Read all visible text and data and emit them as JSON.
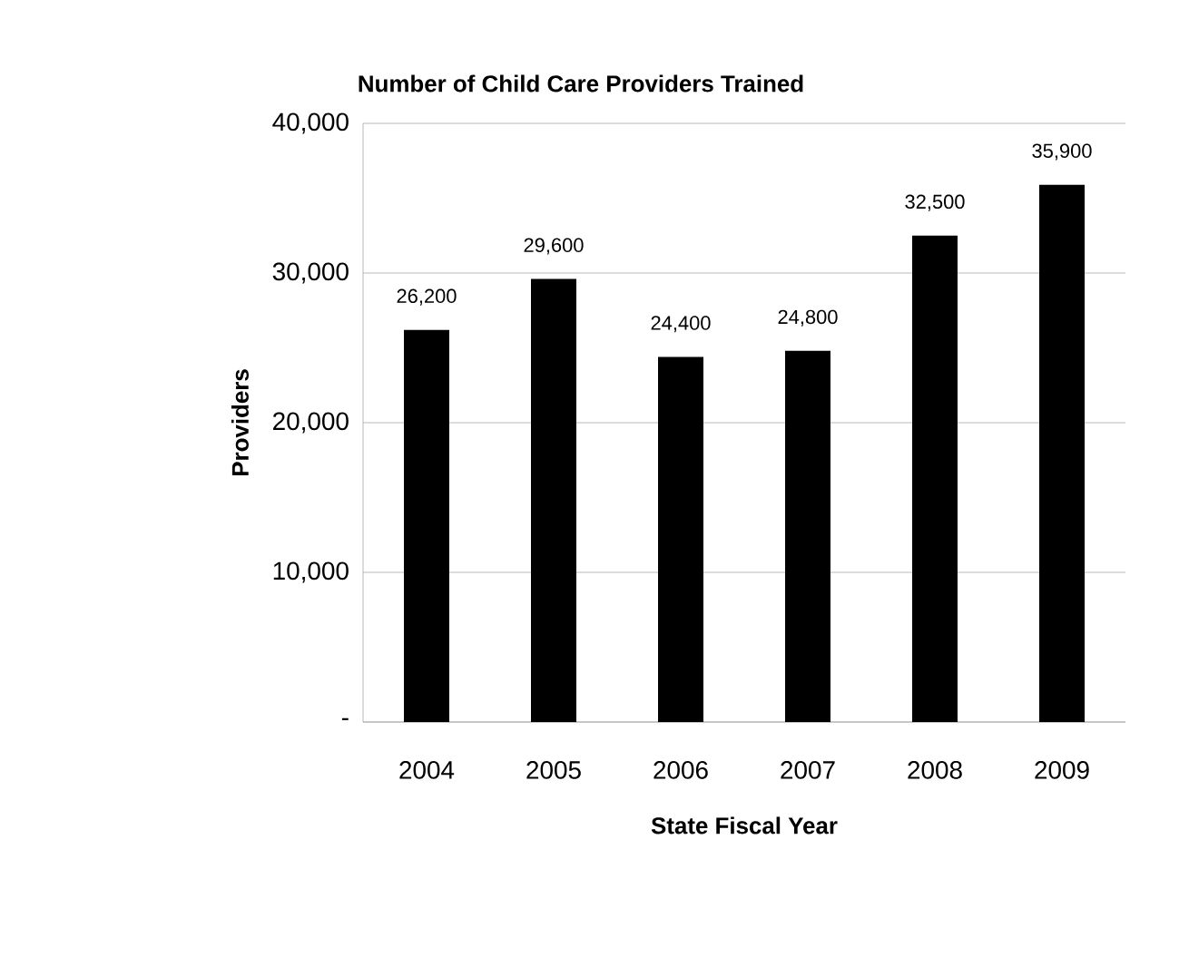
{
  "chart_data": {
    "type": "bar",
    "title": "Number of Child Care Providers Trained",
    "xlabel": "State Fiscal Year",
    "ylabel": "Providers",
    "categories": [
      "2004",
      "2005",
      "2006",
      "2007",
      "2008",
      "2009"
    ],
    "values": [
      26200,
      29600,
      24400,
      24800,
      32500,
      35900
    ],
    "value_labels": [
      "26,200",
      "29,600",
      "24,400",
      "24,800",
      "32,500",
      "35,900"
    ],
    "color": "#000000",
    "ylim": [
      0,
      40000
    ],
    "yticks": [
      {
        "value": 0,
        "label": "-"
      },
      {
        "value": 10000,
        "label": "10,000"
      },
      {
        "value": 20000,
        "label": "20,000"
      },
      {
        "value": 30000,
        "label": "30,000"
      },
      {
        "value": 40000,
        "label": "40,000"
      }
    ],
    "grid": "y"
  }
}
